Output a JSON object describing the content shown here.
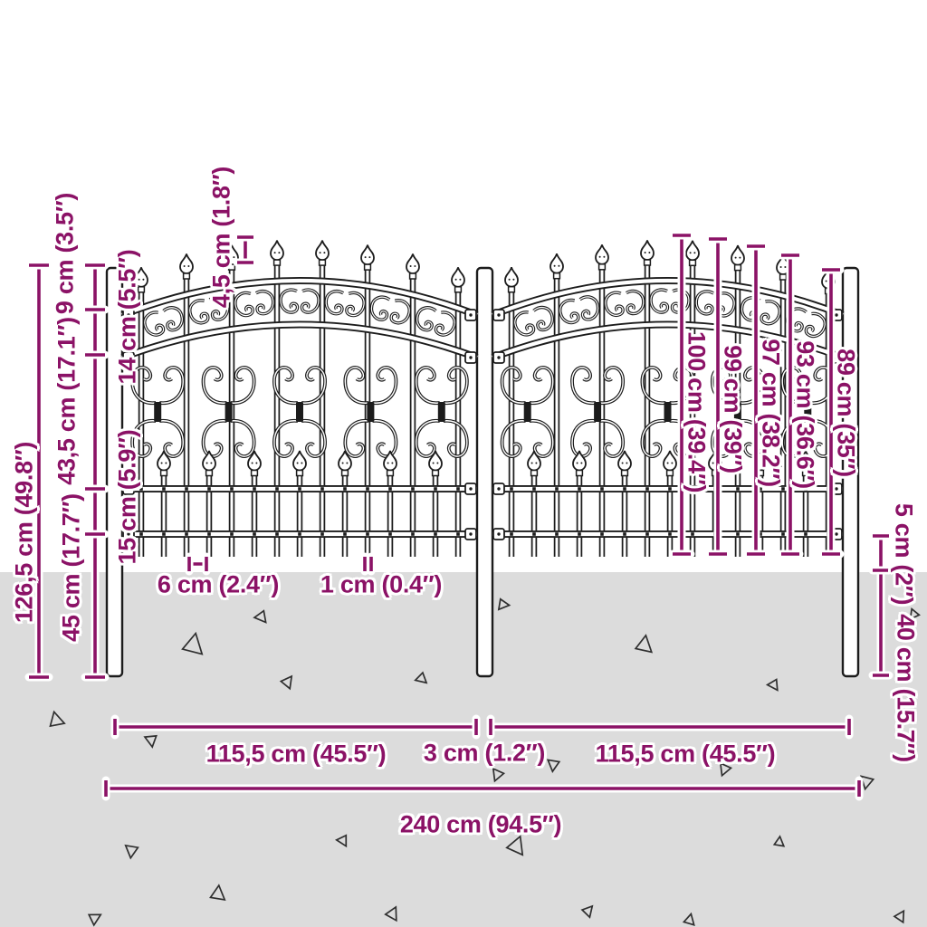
{
  "diagram": {
    "subject": "ornamental double-arch garden fence with spear-top pickets, dimension drawing",
    "accent_color": "#8B1266",
    "ground_color": "#DCDCDC",
    "line_color": "#1C1C1C",
    "gravel_color": "#2F2F2F",
    "dimensions": {
      "total_height": "126,5 cm (49.8″)",
      "post_top_to_band": "9 cm (3.5″)",
      "band_height": "14 cm (5.5″)",
      "band_to_lower_rail": "43,5 cm (17.1″)",
      "lower_rail_gap": "15 cm (5.9″)",
      "below_lower_rail": "45 cm (17.7″)",
      "finial_height": "4,5 cm (1.8″)",
      "picket_height_100": "100 cm (39.4″)",
      "picket_height_99": "99 cm (39″)",
      "picket_height_97": "97 cm (38.2″)",
      "picket_height_93": "93 cm (36.6″)",
      "picket_height_89": "89 cm (35″)",
      "rail_to_ground": "5 cm (2″)",
      "underground_depth": "40 cm (15.7″)",
      "panel_width_left": "115,5 cm (45.5″)",
      "panel_gap": "3 cm (1.2″)",
      "panel_width_right": "115,5 cm (45.5″)",
      "total_width": "240 cm (94.5″)",
      "picket_gap": "6 cm (2.4″)",
      "picket_width": "1 cm (0.4″)"
    }
  }
}
